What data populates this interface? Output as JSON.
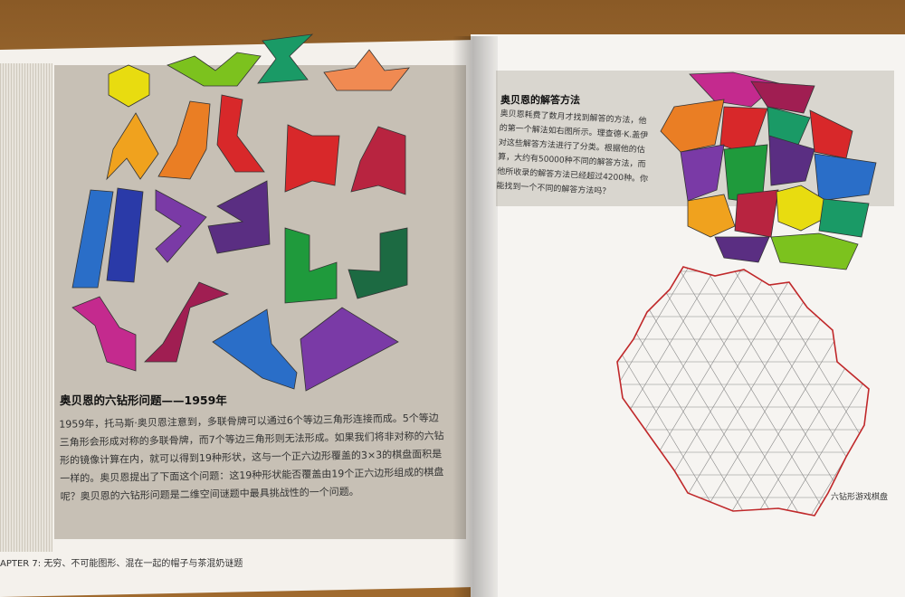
{
  "left_page": {
    "section_title": "奥贝恩的六钻形问题——1959年",
    "body": "1959年，托马斯·奥贝恩注意到，多联骨牌可以通过6个等边三角形连接而成。5个等边三角形会形成对称的多联骨牌，而7个等边三角形则无法形成。如果我们将非对称的六钻形的镜像计算在内，就可以得到19种形状，这与一个正六边形覆盖的3×3的棋盘面积是一样的。奥贝恩提出了下面这个问题：这19种形状能否覆盖由19个正六边形组成的棋盘呢？奥贝恩的六钻形问题是二维空间谜题中最具挑战性的一个问题。",
    "footer": "APTER 7: 无穷、不可能图形、混在一起的帽子与茶混奶谜题"
  },
  "right_page": {
    "section_title": "奥贝恩的解答方法",
    "body": "奥贝恩耗费了数月才找到解答的方法，他的第一个解法如右图所示。理查德·K.盖伊对这些解答方法进行了分类。根据他的估算，大约有50000种不同的解答方法，而他所收录的解答方法已经超过4200种。你能找到一个不同的解答方法吗？",
    "caption": "六钻形游戏棋盘"
  },
  "colors": {
    "yellow": "#e8dc10",
    "lime": "#7cc21e",
    "teal_green": "#1a9a66",
    "salmon": "#f08a52",
    "orange": "#ea7e24",
    "amber": "#f0a21e",
    "red": "#d8282a",
    "crimson": "#b82440",
    "blue": "#2a6ec8",
    "navy": "#2a3aa8",
    "purple": "#7a3aa6",
    "violet": "#5a2e82",
    "green": "#1f9a3c",
    "dark_green": "#1c6a42",
    "magenta": "#c42a8e",
    "wine": "#a01e52",
    "board_outline": "#c0282a"
  }
}
